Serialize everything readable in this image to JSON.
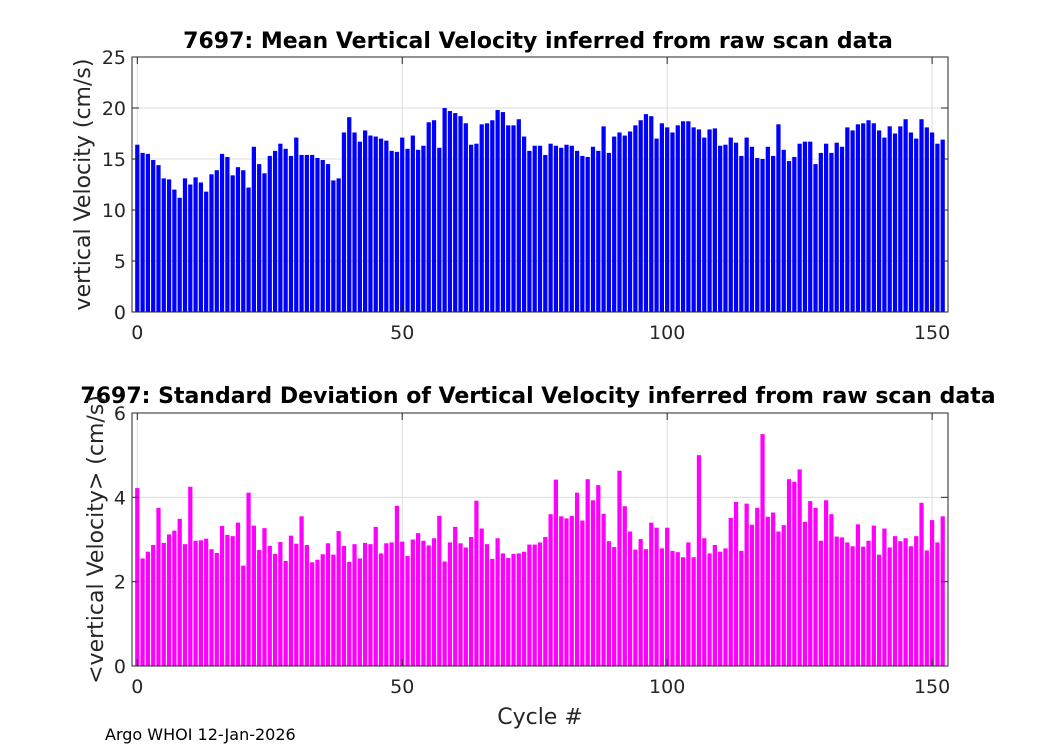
{
  "footer": "Argo WHOI 12-Jan-2026",
  "colors": {
    "mean_bar": "#0000ff",
    "std_bar": "#ff00ff",
    "axis": "#262626",
    "grid": "#dcdcdc"
  },
  "chart_data": [
    {
      "type": "bar",
      "title": "7697: Mean Vertical Velocity inferred from raw scan data",
      "xlabel": "",
      "ylabel": "vertical Velocity (cm/s)",
      "xlim": [
        -1,
        153
      ],
      "ylim": [
        0,
        25
      ],
      "xticks": [
        0,
        50,
        100,
        150
      ],
      "yticks": [
        0,
        5,
        10,
        15,
        20,
        25
      ],
      "grid": true,
      "x_start": 0,
      "values": [
        16.4,
        15.6,
        15.5,
        14.9,
        14.4,
        13.1,
        13.0,
        12.0,
        11.2,
        13.1,
        12.5,
        13.2,
        12.7,
        11.8,
        13.5,
        13.9,
        15.5,
        15.2,
        13.4,
        14.2,
        13.9,
        12.2,
        16.2,
        14.5,
        13.6,
        15.3,
        15.8,
        16.5,
        16.0,
        15.3,
        17.1,
        15.4,
        15.4,
        15.4,
        15.1,
        14.9,
        14.5,
        12.9,
        13.1,
        17.6,
        19.1,
        17.6,
        16.7,
        17.8,
        17.3,
        17.2,
        17.0,
        16.8,
        15.8,
        15.7,
        17.1,
        16.0,
        17.3,
        15.9,
        16.3,
        18.6,
        18.8,
        16.1,
        20.0,
        19.7,
        19.5,
        19.2,
        18.5,
        16.4,
        16.5,
        18.4,
        18.5,
        18.8,
        19.8,
        19.6,
        18.3,
        18.3,
        18.9,
        17.2,
        15.8,
        16.3,
        16.3,
        15.4,
        16.5,
        16.3,
        16.1,
        16.4,
        16.3,
        15.8,
        15.3,
        15.2,
        16.2,
        15.8,
        18.2,
        15.6,
        17.2,
        17.6,
        17.3,
        17.7,
        18.3,
        18.8,
        19.4,
        19.2,
        17.0,
        18.5,
        18.1,
        17.6,
        18.3,
        18.7,
        18.7,
        18.1,
        17.9,
        17.1,
        17.9,
        18.0,
        16.3,
        16.4,
        17.1,
        16.6,
        15.3,
        17.1,
        16.2,
        15.1,
        15.0,
        16.2,
        15.3,
        18.4,
        15.9,
        14.8,
        15.2,
        16.5,
        16.7,
        16.7,
        14.5,
        15.6,
        16.5,
        15.6,
        16.6,
        16.2,
        18.1,
        17.8,
        18.4,
        18.5,
        18.8,
        18.5,
        17.8,
        17.1,
        18.2,
        17.5,
        18.2,
        18.9,
        17.6,
        17.0,
        18.9,
        18.1,
        17.6,
        16.5,
        16.9
      ]
    },
    {
      "type": "bar",
      "title": "7697: Standard Deviation of Vertical Velocity inferred from raw scan data",
      "xlabel": "Cycle #",
      "ylabel": "<vertical Velocity> (cm/s)",
      "xlim": [
        -1,
        153
      ],
      "ylim": [
        0,
        6
      ],
      "xticks": [
        0,
        50,
        100,
        150
      ],
      "yticks": [
        0,
        2,
        4,
        6
      ],
      "grid": true,
      "x_start": 0,
      "values": [
        4.22,
        2.55,
        2.71,
        2.87,
        3.75,
        2.92,
        3.12,
        3.21,
        3.49,
        2.89,
        4.25,
        2.97,
        2.98,
        3.02,
        2.77,
        2.68,
        3.32,
        3.11,
        3.08,
        3.4,
        2.38,
        4.11,
        3.33,
        2.75,
        3.27,
        2.85,
        2.66,
        2.94,
        2.49,
        3.09,
        2.9,
        3.55,
        2.87,
        2.46,
        2.52,
        2.65,
        2.91,
        2.64,
        3.2,
        2.85,
        2.47,
        2.89,
        2.55,
        2.92,
        2.89,
        3.3,
        2.67,
        2.91,
        2.93,
        3.8,
        2.95,
        2.61,
        3.0,
        3.15,
        2.97,
        2.86,
        3.03,
        3.56,
        2.48,
        2.93,
        3.3,
        2.91,
        2.81,
        3.06,
        3.92,
        3.26,
        2.89,
        2.54,
        3.03,
        2.67,
        2.56,
        2.66,
        2.67,
        2.71,
        2.88,
        2.88,
        2.93,
        3.06,
        3.6,
        4.42,
        3.55,
        3.5,
        3.56,
        4.11,
        3.45,
        4.43,
        3.93,
        4.29,
        3.61,
        2.96,
        2.82,
        4.63,
        3.79,
        3.19,
        2.76,
        3.01,
        2.77,
        3.4,
        3.28,
        2.79,
        3.28,
        2.73,
        2.7,
        2.58,
        2.93,
        2.58,
        5.0,
        3.03,
        2.67,
        2.87,
        2.71,
        2.79,
        3.51,
        3.89,
        2.73,
        3.85,
        3.35,
        3.75,
        5.5,
        3.54,
        3.64,
        3.19,
        3.34,
        4.43,
        4.37,
        4.66,
        3.42,
        3.91,
        3.75,
        2.97,
        3.93,
        3.6,
        3.07,
        3.05,
        2.93,
        2.84,
        3.36,
        2.83,
        2.97,
        3.33,
        2.64,
        3.26,
        2.81,
        3.08,
        2.96,
        3.03,
        2.84,
        3.08,
        3.87,
        2.74,
        3.46,
        2.93,
        3.55
      ]
    }
  ]
}
